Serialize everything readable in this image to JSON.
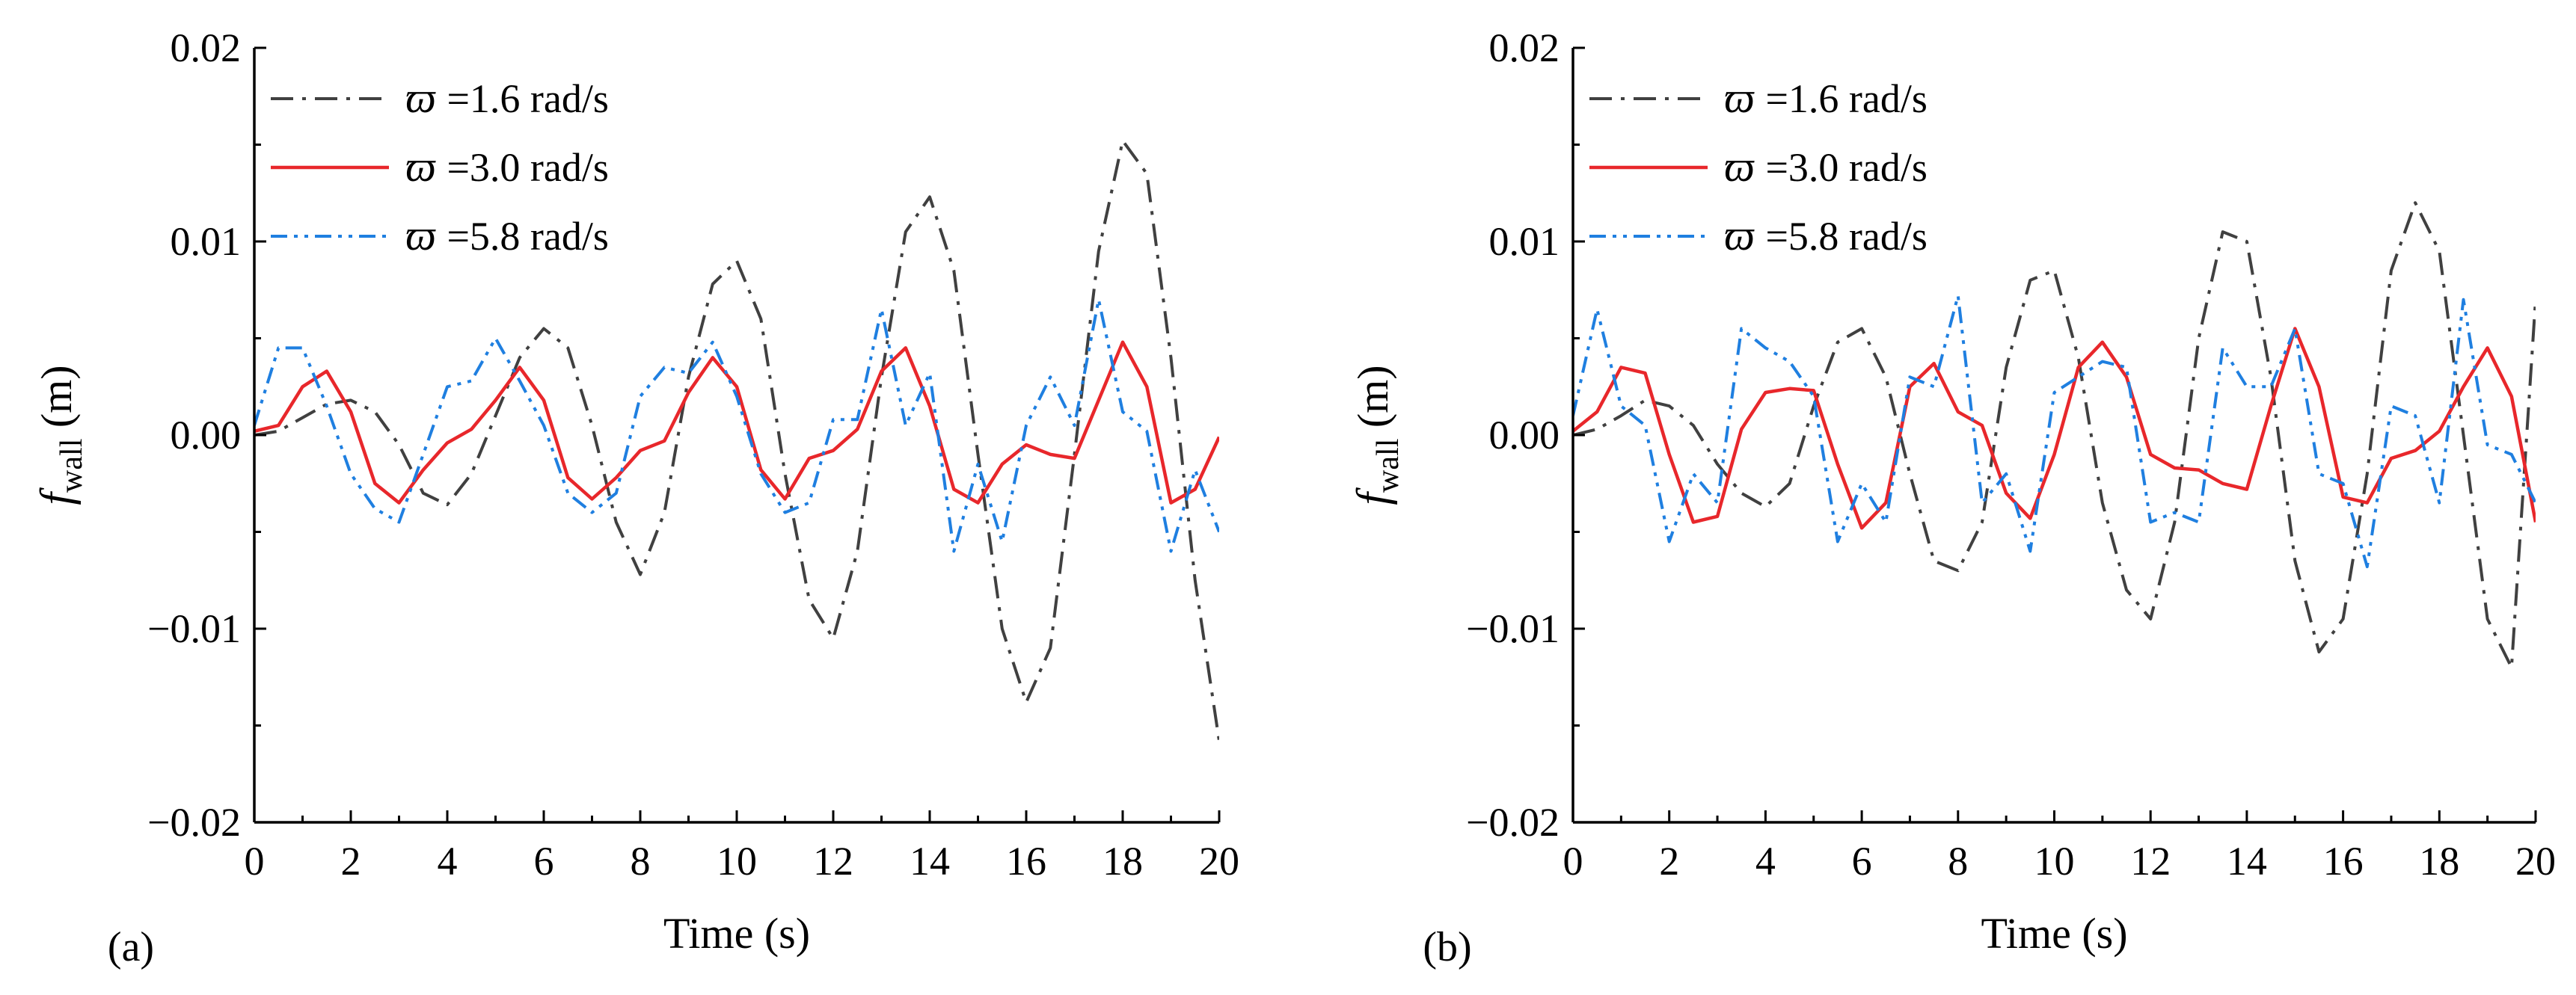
{
  "chart_data": [
    {
      "type": "line",
      "panel_label": "(a)",
      "xlabel": "Time (s)",
      "ylabel": {
        "symbol": "f",
        "subscript": "wall",
        "unit": " (m)"
      },
      "xlim": [
        0,
        20
      ],
      "ylim": [
        -0.02,
        0.02
      ],
      "xticks": [
        0,
        2,
        4,
        6,
        8,
        10,
        12,
        14,
        16,
        18,
        20
      ],
      "yticks": [
        -0.02,
        -0.01,
        0.0,
        0.01,
        0.02
      ],
      "ytick_labels": [
        "−0.02",
        "−0.01",
        "0.00",
        "0.01",
        "0.02"
      ],
      "legend_position": "top-left",
      "series": [
        {
          "name": "ϖ =1.6 rad/s",
          "legend_symbol": "ϖ",
          "legend_value": "=1.6 rad/s",
          "style": "dashdot",
          "color": "#404040",
          "x": [
            0,
            0.5,
            1,
            1.5,
            2,
            2.5,
            3,
            3.5,
            4,
            4.5,
            5,
            5.5,
            6,
            6.5,
            7,
            7.5,
            8,
            8.5,
            9,
            9.5,
            10,
            10.5,
            11,
            11.5,
            12,
            12.5,
            13,
            13.5,
            14,
            14.5,
            15,
            15.5,
            16,
            16.5,
            17,
            17.5,
            18,
            18.5,
            19,
            19.5,
            20
          ],
          "y": [
            0,
            0.0002,
            0.0009,
            0.0016,
            0.0018,
            0.0012,
            -0.0005,
            -0.003,
            -0.0036,
            -0.002,
            0.001,
            0.004,
            0.0055,
            0.0045,
            0.0005,
            -0.0045,
            -0.0072,
            -0.004,
            0.003,
            0.0078,
            0.009,
            0.006,
            -0.002,
            -0.0085,
            -0.0105,
            -0.006,
            0.003,
            0.0105,
            0.0123,
            0.0085,
            -0.001,
            -0.01,
            -0.0138,
            -0.011,
            -0.001,
            0.0095,
            0.0152,
            0.0135,
            0.004,
            -0.0075,
            -0.0158
          ]
        },
        {
          "name": "ϖ =3.0 rad/s",
          "legend_symbol": "ϖ",
          "legend_value": "=3.0 rad/s",
          "style": "solid",
          "color": "#e8272b",
          "x": [
            0,
            0.5,
            1,
            1.5,
            2,
            2.5,
            3,
            3.5,
            4,
            4.5,
            5,
            5.5,
            6,
            6.5,
            7,
            7.5,
            8,
            8.5,
            9,
            9.5,
            10,
            10.5,
            11,
            11.5,
            12,
            12.5,
            13,
            13.5,
            14,
            14.5,
            15,
            15.5,
            16,
            16.5,
            17,
            17.5,
            18,
            18.5,
            19,
            19.5,
            20
          ],
          "y": [
            0.0002,
            0.0005,
            0.0025,
            0.0033,
            0.0012,
            -0.0025,
            -0.0035,
            -0.0018,
            -0.0004,
            0.0003,
            0.0018,
            0.0035,
            0.0018,
            -0.0022,
            -0.0033,
            -0.0022,
            -0.0008,
            -0.0003,
            0.0022,
            0.004,
            0.0025,
            -0.0018,
            -0.0033,
            -0.0012,
            -0.0008,
            0.0003,
            0.0033,
            0.0045,
            0.0015,
            -0.0028,
            -0.0035,
            -0.0015,
            -0.0005,
            -0.001,
            -0.0012,
            0.0018,
            0.0048,
            0.0025,
            -0.0035,
            -0.0028,
            -0.0001
          ]
        },
        {
          "name": "ϖ =5.8 rad/s",
          "legend_symbol": "ϖ",
          "legend_value": "=5.8 rad/s",
          "style": "dashdotdot",
          "color": "#1f7fe0",
          "x": [
            0,
            0.5,
            1,
            1.5,
            2,
            2.5,
            3,
            3.5,
            4,
            4.5,
            5,
            5.5,
            6,
            6.5,
            7,
            7.5,
            8,
            8.5,
            9,
            9.5,
            10,
            10.5,
            11,
            11.5,
            12,
            12.5,
            13,
            13.5,
            14,
            14.5,
            15,
            15.5,
            16,
            16.5,
            17,
            17.5,
            18,
            18.5,
            19,
            19.5,
            20
          ],
          "y": [
            0.0005,
            0.0045,
            0.0045,
            0.0015,
            -0.002,
            -0.0038,
            -0.0045,
            -0.001,
            0.0025,
            0.0028,
            0.005,
            0.0028,
            0.0005,
            -0.003,
            -0.004,
            -0.003,
            0.002,
            0.0035,
            0.0032,
            0.0048,
            0.002,
            -0.002,
            -0.004,
            -0.0035,
            0.0008,
            0.0008,
            0.0065,
            0.0005,
            0.0032,
            -0.006,
            -0.0015,
            -0.0055,
            0.0005,
            0.003,
            0.0005,
            0.007,
            0.0012,
            0.0002,
            -0.006,
            -0.0018,
            -0.005
          ]
        }
      ]
    },
    {
      "type": "line",
      "panel_label": "(b)",
      "xlabel": "Time (s)",
      "ylabel": {
        "symbol": "f",
        "subscript": "wall",
        "unit": " (m)"
      },
      "xlim": [
        0,
        20
      ],
      "ylim": [
        -0.02,
        0.02
      ],
      "xticks": [
        0,
        2,
        4,
        6,
        8,
        10,
        12,
        14,
        16,
        18,
        20
      ],
      "yticks": [
        -0.02,
        -0.01,
        0.0,
        0.01,
        0.02
      ],
      "ytick_labels": [
        "−0.02",
        "−0.01",
        "0.00",
        "0.01",
        "0.02"
      ],
      "legend_position": "top-left",
      "series": [
        {
          "name": "ϖ =1.6 rad/s",
          "legend_symbol": "ϖ",
          "legend_value": "=1.6 rad/s",
          "style": "dashdot",
          "color": "#404040",
          "x": [
            0,
            0.5,
            1,
            1.5,
            2,
            2.5,
            3,
            3.5,
            4,
            4.5,
            5,
            5.5,
            6,
            6.5,
            7,
            7.5,
            8,
            8.5,
            9,
            9.5,
            10,
            10.5,
            11,
            11.5,
            12,
            12.5,
            13,
            13.5,
            14,
            14.5,
            15,
            15.5,
            16,
            16.5,
            17,
            17.5,
            18,
            18.5,
            19,
            19.5,
            20
          ],
          "y": [
            0,
            0.0003,
            0.001,
            0.0018,
            0.0015,
            0.0005,
            -0.0015,
            -0.003,
            -0.0037,
            -0.0025,
            0.0015,
            0.0048,
            0.0055,
            0.003,
            -0.002,
            -0.0065,
            -0.007,
            -0.0045,
            0.0035,
            0.008,
            0.0085,
            0.004,
            -0.0035,
            -0.008,
            -0.0095,
            -0.0045,
            0.005,
            0.0105,
            0.01,
            0.003,
            -0.0065,
            -0.0112,
            -0.0095,
            -0.002,
            0.0085,
            0.012,
            0.0095,
            0.0,
            -0.0095,
            -0.012,
            0.007
          ]
        },
        {
          "name": "ϖ =3.0 rad/s",
          "legend_symbol": "ϖ",
          "legend_value": "=3.0 rad/s",
          "style": "solid",
          "color": "#e8272b",
          "x": [
            0,
            0.5,
            1,
            1.5,
            2,
            2.5,
            3,
            3.5,
            4,
            4.5,
            5,
            5.5,
            6,
            6.5,
            7,
            7.5,
            8,
            8.5,
            9,
            9.5,
            10,
            10.5,
            11,
            11.5,
            12,
            12.5,
            13,
            13.5,
            14,
            14.5,
            15,
            15.5,
            16,
            16.5,
            17,
            17.5,
            18,
            18.5,
            19,
            19.5,
            20
          ],
          "y": [
            0.0002,
            0.0012,
            0.0035,
            0.0032,
            -0.001,
            -0.0045,
            -0.0042,
            0.0003,
            0.0022,
            0.0024,
            0.0023,
            -0.0015,
            -0.0048,
            -0.0035,
            0.0025,
            0.0037,
            0.0012,
            0.0005,
            -0.003,
            -0.0043,
            -0.001,
            0.0035,
            0.0048,
            0.003,
            -0.001,
            -0.0017,
            -0.0018,
            -0.0025,
            -0.0028,
            0.0015,
            0.0055,
            0.0025,
            -0.0032,
            -0.0035,
            -0.0012,
            -0.0008,
            0.0002,
            0.0025,
            0.0045,
            0.002,
            -0.0045
          ]
        },
        {
          "name": "ϖ =5.8 rad/s",
          "legend_symbol": "ϖ",
          "legend_value": "=5.8 rad/s",
          "style": "dashdotdot",
          "color": "#1f7fe0",
          "x": [
            0,
            0.5,
            1,
            1.5,
            2,
            2.5,
            3,
            3.5,
            4,
            4.5,
            5,
            5.5,
            6,
            6.5,
            7,
            7.5,
            8,
            8.5,
            9,
            9.5,
            10,
            10.5,
            11,
            11.5,
            12,
            12.5,
            13,
            13.5,
            14,
            14.5,
            15,
            15.5,
            16,
            16.5,
            17,
            17.5,
            18,
            18.5,
            19,
            19.5,
            20
          ],
          "y": [
            0.001,
            0.0065,
            0.0015,
            0.0005,
            -0.0055,
            -0.002,
            -0.0035,
            0.0055,
            0.0045,
            0.0038,
            0.002,
            -0.0055,
            -0.0025,
            -0.0045,
            0.003,
            0.0025,
            0.0072,
            -0.0035,
            -0.002,
            -0.006,
            0.0022,
            0.003,
            0.0038,
            0.0035,
            -0.0045,
            -0.004,
            -0.0045,
            0.0045,
            0.0025,
            0.0025,
            0.0055,
            -0.002,
            -0.0025,
            -0.0068,
            0.0015,
            0.001,
            -0.0035,
            0.007,
            -0.0005,
            -0.001,
            -0.0035
          ]
        }
      ]
    }
  ]
}
